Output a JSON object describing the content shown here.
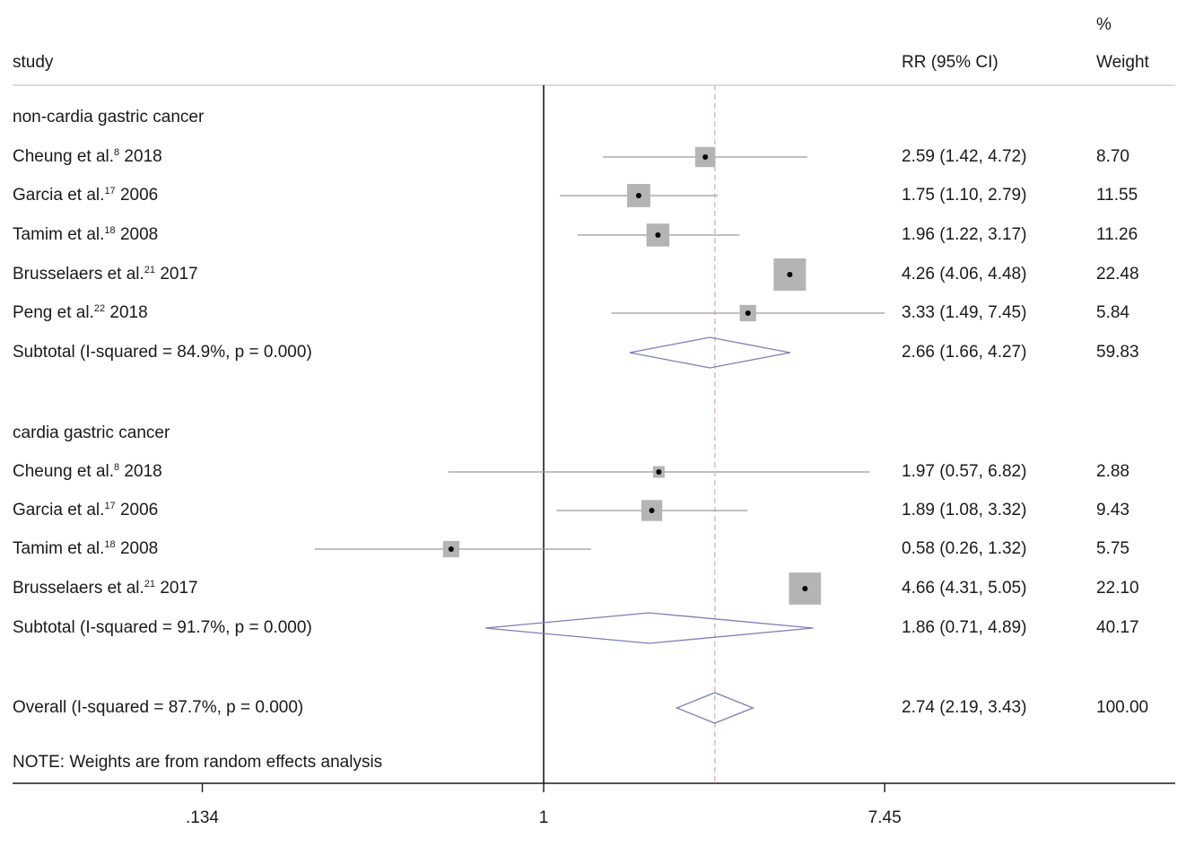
{
  "header": {
    "study": "study",
    "rr": "RR (95% CI)",
    "weight_pct": "%",
    "weight": "Weight"
  },
  "note": "NOTE: Weights are from random effects analysis",
  "chart_data": {
    "type": "forest",
    "scale": "log",
    "x_ticks": [
      0.134,
      1,
      7.45
    ],
    "x_tick_labels": [
      ".134",
      "1",
      "7.45"
    ],
    "null_line": 1,
    "overall_line": 2.74,
    "rows": [
      {
        "kind": "group",
        "label": "non-cardia gastric cancer"
      },
      {
        "kind": "study",
        "author": "Cheung et al.",
        "ref": "8",
        "year": "2018",
        "rr": 2.59,
        "lo": 1.42,
        "hi": 4.72,
        "ci_text": "2.59 (1.42, 4.72)",
        "weight": 8.7,
        "weight_text": "8.70"
      },
      {
        "kind": "study",
        "author": "Garcia et al.",
        "ref": "17",
        "year": "2006",
        "rr": 1.75,
        "lo": 1.1,
        "hi": 2.79,
        "ci_text": "1.75 (1.10, 2.79)",
        "weight": 11.55,
        "weight_text": "11.55"
      },
      {
        "kind": "study",
        "author": "Tamim et al.",
        "ref": "18",
        "year": "2008",
        "rr": 1.96,
        "lo": 1.22,
        "hi": 3.17,
        "ci_text": "1.96 (1.22, 3.17)",
        "weight": 11.26,
        "weight_text": "11.26"
      },
      {
        "kind": "study",
        "author": "Brusselaers et al.",
        "ref": "21",
        "year": "2017",
        "rr": 4.26,
        "lo": 4.06,
        "hi": 4.48,
        "ci_text": "4.26 (4.06, 4.48)",
        "weight": 22.48,
        "weight_text": "22.48"
      },
      {
        "kind": "study",
        "author": "Peng et al.",
        "ref": "22",
        "year": "2018",
        "rr": 3.33,
        "lo": 1.49,
        "hi": 7.45,
        "ci_text": "3.33 (1.49, 7.45)",
        "weight": 5.84,
        "weight_text": "5.84"
      },
      {
        "kind": "subtotal",
        "label": "Subtotal  (I-squared = 84.9%, p = 0.000)",
        "rr": 2.66,
        "lo": 1.66,
        "hi": 4.27,
        "ci_text": "2.66 (1.66, 4.27)",
        "weight_text": "59.83"
      },
      {
        "kind": "blank"
      },
      {
        "kind": "group",
        "label": "cardia gastric cancer"
      },
      {
        "kind": "study",
        "author": "Cheung et al.",
        "ref": "8",
        "year": "2018",
        "rr": 1.97,
        "lo": 0.57,
        "hi": 6.82,
        "ci_text": "1.97 (0.57, 6.82)",
        "weight": 2.88,
        "weight_text": "2.88"
      },
      {
        "kind": "study",
        "author": "Garcia et al.",
        "ref": "17",
        "year": "2006",
        "rr": 1.89,
        "lo": 1.08,
        "hi": 3.32,
        "ci_text": "1.89 (1.08, 3.32)",
        "weight": 9.43,
        "weight_text": "9.43"
      },
      {
        "kind": "study",
        "author": "Tamim et al.",
        "ref": "18",
        "year": "2008",
        "rr": 0.58,
        "lo": 0.26,
        "hi": 1.32,
        "ci_text": "0.58 (0.26, 1.32)",
        "weight": 5.75,
        "weight_text": "5.75"
      },
      {
        "kind": "study",
        "author": "Brusselaers et al.",
        "ref": "21",
        "year": "2017",
        "rr": 4.66,
        "lo": 4.31,
        "hi": 5.05,
        "ci_text": "4.66 (4.31, 5.05)",
        "weight": 22.1,
        "weight_text": "22.10"
      },
      {
        "kind": "subtotal",
        "label": "Subtotal  (I-squared = 91.7%, p = 0.000)",
        "rr": 1.86,
        "lo": 0.71,
        "hi": 4.89,
        "ci_text": "1.86 (0.71, 4.89)",
        "weight_text": "40.17"
      },
      {
        "kind": "blank"
      },
      {
        "kind": "overall",
        "label": "Overall  (I-squared = 87.7%, p = 0.000)",
        "rr": 2.74,
        "lo": 2.19,
        "hi": 3.43,
        "ci_text": "2.74 (2.19, 3.43)",
        "weight_text": "100.00"
      }
    ]
  },
  "colors": {
    "text": "#1a1a1a",
    "ci_line": "#9a9a9a",
    "weight_box": "#b4b4b4",
    "diamond": "#7a7fb8",
    "overall_line": "#e2a8b4",
    "axis": "#1a1a1a",
    "divider": "#c8c8c8"
  }
}
